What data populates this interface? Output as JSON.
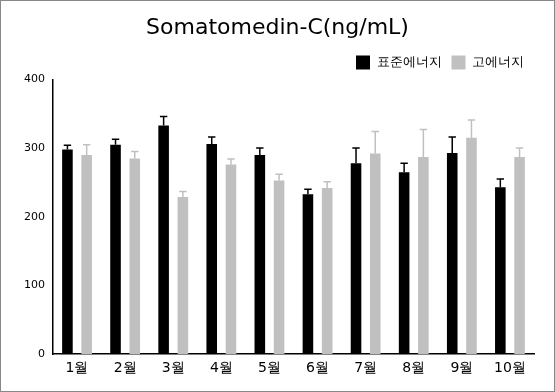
{
  "chart_data": {
    "type": "bar",
    "title": "Somatomedin-C(ng/mL)",
    "categories": [
      "1월",
      "2월",
      "3월",
      "4월",
      "5월",
      "6월",
      "7월",
      "8월",
      "9월",
      "10월"
    ],
    "series": [
      {
        "name": "표준에너지",
        "color": "#000000",
        "values": [
          298,
          305,
          333,
          306,
          290,
          233,
          278,
          265,
          293,
          243
        ],
        "errors": [
          6,
          8,
          13,
          10,
          10,
          7,
          22,
          13,
          23,
          12
        ]
      },
      {
        "name": "고에너지",
        "color": "#c0c0c0",
        "values": [
          290,
          285,
          229,
          276,
          253,
          242,
          292,
          287,
          315,
          287
        ],
        "errors": [
          15,
          10,
          8,
          8,
          9,
          9,
          32,
          40,
          26,
          13
        ]
      }
    ],
    "ylim": [
      0,
      400
    ],
    "yticks": [
      0,
      100,
      200,
      300,
      400
    ],
    "grid": false,
    "legend": "upper right"
  }
}
